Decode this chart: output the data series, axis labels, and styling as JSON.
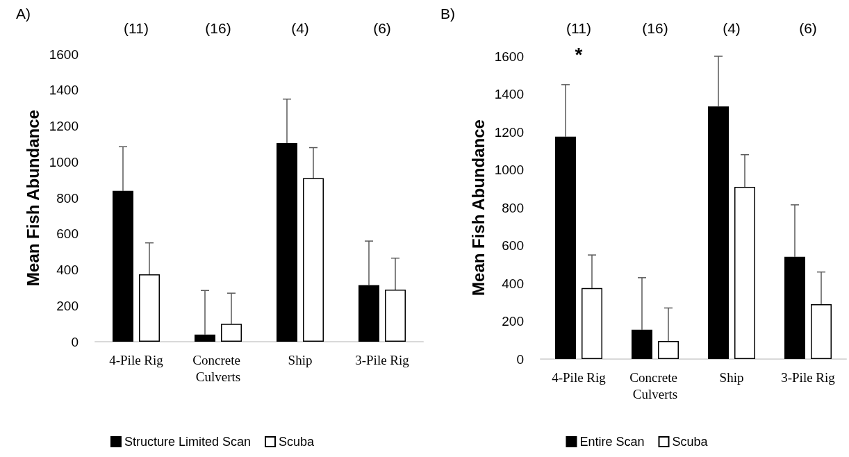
{
  "chart_data": [
    {
      "type": "bar",
      "title": "A)",
      "ylabel": "Mean Fish Abundance",
      "categories": [
        "4-Pile Rig",
        "Concrete Culverts",
        "Ship",
        "3-Pile Rig"
      ],
      "series": [
        {
          "name": "Structure Limited Scan",
          "color": "#000000",
          "values": [
            840,
            40,
            1105,
            315
          ],
          "errors": [
            [
              840,
              1085
            ],
            [
              40,
              285
            ],
            [
              1105,
              1350
            ],
            [
              315,
              560
            ]
          ]
        },
        {
          "name": "Scuba",
          "color": "#ffffff",
          "values": [
            375,
            100,
            910,
            290
          ],
          "errors": [
            [
              375,
              550
            ],
            [
              100,
              270
            ],
            [
              910,
              1080
            ],
            [
              290,
              465
            ]
          ]
        }
      ],
      "ylim": [
        0,
        1600
      ],
      "yticks": [
        0,
        200,
        400,
        600,
        800,
        1000,
        1200,
        1400,
        1600
      ],
      "grid": false,
      "legend": "bottom",
      "annotations": [
        "(11)",
        "(16)",
        "(4)",
        "(6)"
      ]
    },
    {
      "type": "bar",
      "title": "B)",
      "ylabel": "Mean Fish Abundance",
      "categories": [
        "4-Pile Rig",
        "Concrete Culverts",
        "Ship",
        "3-Pile Rig"
      ],
      "series": [
        {
          "name": "Entire Scan",
          "color": "#000000",
          "values": [
            1175,
            155,
            1335,
            540
          ],
          "errors": [
            [
              1175,
              1450
            ],
            [
              155,
              430
            ],
            [
              1335,
              1600
            ],
            [
              540,
              815
            ]
          ]
        },
        {
          "name": "Scuba",
          "color": "#ffffff",
          "values": [
            375,
            95,
            910,
            290
          ],
          "errors": [
            [
              375,
              550
            ],
            [
              95,
              270
            ],
            [
              910,
              1080
            ],
            [
              290,
              460
            ]
          ]
        }
      ],
      "ylim": [
        0,
        1600
      ],
      "yticks": [
        0,
        200,
        400,
        600,
        800,
        1000,
        1200,
        1400,
        1600
      ],
      "grid": false,
      "legend": "bottom",
      "annotations": [
        "(11)",
        "(16)",
        "(4)",
        "(6)",
        "*"
      ]
    }
  ]
}
